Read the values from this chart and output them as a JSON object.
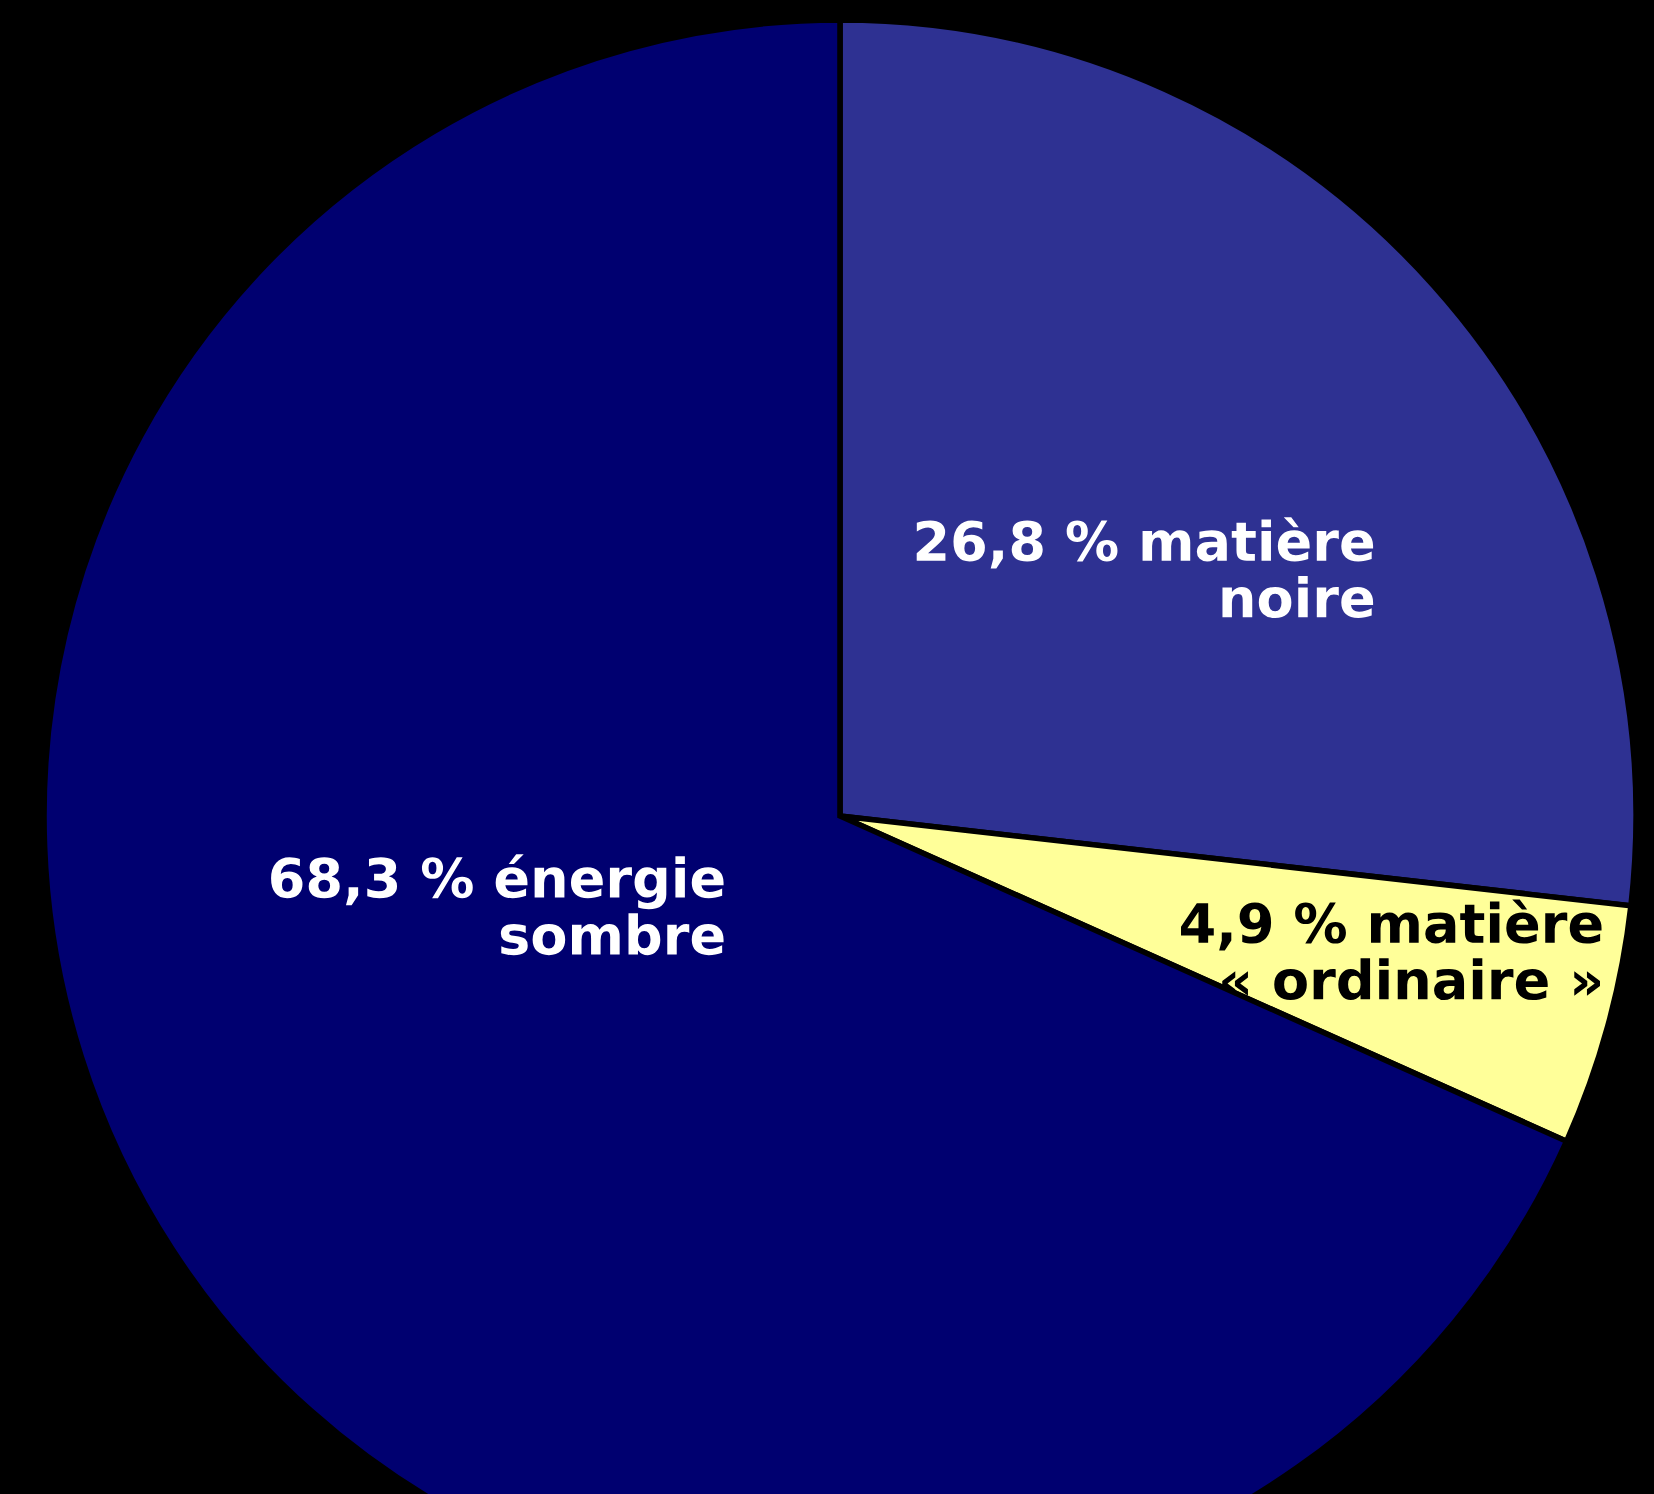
{
  "chart_data": {
    "type": "pie",
    "categories": [
      "matière noire",
      "matière « ordinaire »",
      "énergie sombre"
    ],
    "values": [
      26.8,
      4.9,
      68.3
    ],
    "colors": [
      "#2e3192",
      "#ffff99",
      "#000070"
    ],
    "value_labels": [
      "26,8 %",
      "4,9 %",
      "68,3 %"
    ],
    "legend": false
  }
}
